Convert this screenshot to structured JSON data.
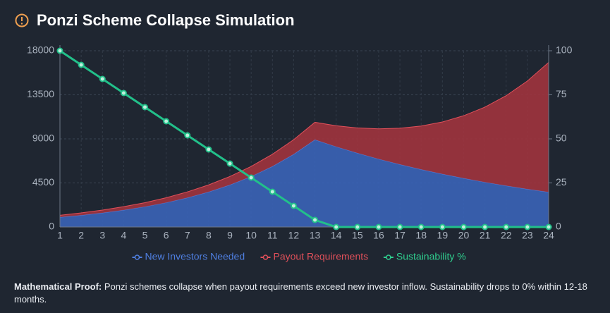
{
  "header": {
    "title": "Ponzi Scheme Collapse Simulation"
  },
  "chart_data": {
    "type": "stacked-area-line",
    "categories": [
      "1",
      "2",
      "3",
      "4",
      "5",
      "6",
      "7",
      "8",
      "9",
      "10",
      "11",
      "12",
      "13",
      "14",
      "15",
      "16",
      "17",
      "18",
      "19",
      "20",
      "21",
      "22",
      "23",
      "24"
    ],
    "series": [
      {
        "name": "New Investors Needed",
        "color": "#3a64b8",
        "legend_color": "#4f7fe0",
        "kind": "area",
        "stack": true,
        "values": [
          1000,
          1200,
          1440,
          1728,
          2074,
          2488,
          2986,
          3583,
          4300,
          5160,
          6192,
          7430,
          8916,
          8203,
          7547,
          6943,
          6388,
          5877,
          5407,
          4974,
          4576,
          4210,
          3873,
          3563
        ]
      },
      {
        "name": "Payout Requirements",
        "color": "#a0343e",
        "legend_color": "#e0505a",
        "kind": "area",
        "stack": true,
        "values": [
          200,
          240,
          290,
          350,
          410,
          500,
          600,
          720,
          860,
          1030,
          1240,
          1490,
          1780,
          2140,
          2570,
          3080,
          3700,
          4440,
          5320,
          6390,
          7670,
          9200,
          11040,
          13250
        ]
      },
      {
        "name": "Sustainability %",
        "color": "#22c08a",
        "legend_color": "#2fcf8f",
        "kind": "line",
        "axis": "y2",
        "values": [
          100,
          92,
          84,
          76,
          68,
          60,
          52,
          44,
          36,
          28,
          20,
          12,
          4,
          0,
          0,
          0,
          0,
          0,
          0,
          0,
          0,
          0,
          0,
          0
        ]
      }
    ],
    "ylim": [
      0,
      18000
    ],
    "yticks": [
      0,
      4500,
      9000,
      13500,
      18000
    ],
    "y2lim": [
      0,
      100
    ],
    "y2ticks": [
      0,
      25,
      50,
      75,
      100
    ],
    "grid": true
  },
  "footer": {
    "label": "Mathematical Proof:",
    "text": " Ponzi schemes collapse when payout requirements exceed new investor inflow. Sustainability drops to 0% within 12-18 months."
  }
}
